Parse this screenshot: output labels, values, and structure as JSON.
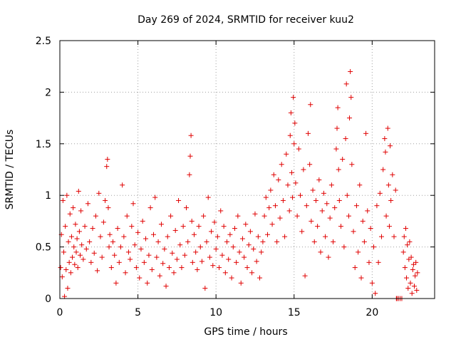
{
  "chart_data": {
    "type": "scatter",
    "title": "Day 269 of 2024, SRMTID for receiver kuu2",
    "xlabel": "GPS time / hours",
    "ylabel": "SRMTID / TECUs",
    "xlim": [
      0,
      24
    ],
    "ylim": [
      0,
      2.5
    ],
    "x_ticks": [
      0,
      5,
      10,
      15,
      20
    ],
    "x_tick_labels": [
      "0",
      "5",
      "10",
      "15",
      "20"
    ],
    "y_ticks": [
      0,
      0.5,
      1,
      1.5,
      2,
      2.5
    ],
    "y_tick_labels": [
      "0",
      "0.5",
      "1",
      "1.5",
      "2",
      "2.5"
    ],
    "grid": true,
    "marker": "+",
    "color": "#e00000",
    "series": [
      {
        "name": "SRMTID",
        "points": [
          [
            0.05,
            0.3
          ],
          [
            0.1,
            0.62
          ],
          [
            0.15,
            0.21
          ],
          [
            0.2,
            0.95
          ],
          [
            0.25,
            0.45
          ],
          [
            0.3,
            0.02
          ],
          [
            0.35,
            0.7
          ],
          [
            0.4,
            0.28
          ],
          [
            0.45,
            1.0
          ],
          [
            0.5,
            0.1
          ],
          [
            0.55,
            0.55
          ],
          [
            0.6,
            0.35
          ],
          [
            0.65,
            0.82
          ],
          [
            0.7,
            0.25
          ],
          [
            0.75,
            0.6
          ],
          [
            0.8,
            0.4
          ],
          [
            0.85,
            0.88
          ],
          [
            0.9,
            0.5
          ],
          [
            0.95,
            0.33
          ],
          [
            1.0,
            0.72
          ],
          [
            1.05,
            0.45
          ],
          [
            1.1,
            0.58
          ],
          [
            1.15,
            0.3
          ],
          [
            1.2,
            1.04
          ],
          [
            1.25,
            0.65
          ],
          [
            1.3,
            0.42
          ],
          [
            1.35,
            0.85
          ],
          [
            1.4,
            0.52
          ],
          [
            1.5,
            0.38
          ],
          [
            1.6,
            0.7
          ],
          [
            1.7,
            0.48
          ],
          [
            1.8,
            0.92
          ],
          [
            1.9,
            0.55
          ],
          [
            2.0,
            0.35
          ],
          [
            2.1,
            0.68
          ],
          [
            2.2,
            0.44
          ],
          [
            2.3,
            0.8
          ],
          [
            2.4,
            0.27
          ],
          [
            2.5,
            1.02
          ],
          [
            2.6,
            0.6
          ],
          [
            2.7,
            0.4
          ],
          [
            2.8,
            0.74
          ],
          [
            2.9,
            0.95
          ],
          [
            3.0,
            1.28
          ],
          [
            3.05,
            1.35
          ],
          [
            3.1,
            0.88
          ],
          [
            3.15,
            0.5
          ],
          [
            3.2,
            0.62
          ],
          [
            3.3,
            0.3
          ],
          [
            3.4,
            0.55
          ],
          [
            3.5,
            0.42
          ],
          [
            3.6,
            0.15
          ],
          [
            3.7,
            0.68
          ],
          [
            3.8,
            0.35
          ],
          [
            3.9,
            0.5
          ],
          [
            4.0,
            1.1
          ],
          [
            4.1,
            0.6
          ],
          [
            4.2,
            0.25
          ],
          [
            4.3,
            0.8
          ],
          [
            4.4,
            0.45
          ],
          [
            4.5,
            0.38
          ],
          [
            4.6,
            0.7
          ],
          [
            4.7,
            0.92
          ],
          [
            4.8,
            0.52
          ],
          [
            4.9,
            0.3
          ],
          [
            5.0,
            0.64
          ],
          [
            5.1,
            0.2
          ],
          [
            5.2,
            0.48
          ],
          [
            5.3,
            0.75
          ],
          [
            5.4,
            0.35
          ],
          [
            5.5,
            0.58
          ],
          [
            5.6,
            0.15
          ],
          [
            5.7,
            0.42
          ],
          [
            5.8,
            0.88
          ],
          [
            5.9,
            0.28
          ],
          [
            6.0,
            0.62
          ],
          [
            6.1,
            0.98
          ],
          [
            6.2,
            0.4
          ],
          [
            6.3,
            0.55
          ],
          [
            6.4,
            0.22
          ],
          [
            6.5,
            0.72
          ],
          [
            6.6,
            0.34
          ],
          [
            6.7,
            0.48
          ],
          [
            6.8,
            0.12
          ],
          [
            6.9,
            0.6
          ],
          [
            7.0,
            0.3
          ],
          [
            7.1,
            0.8
          ],
          [
            7.2,
            0.44
          ],
          [
            7.3,
            0.25
          ],
          [
            7.4,
            0.66
          ],
          [
            7.5,
            0.38
          ],
          [
            7.6,
            0.95
          ],
          [
            7.7,
            0.52
          ],
          [
            7.8,
            0.3
          ],
          [
            7.9,
            0.7
          ],
          [
            8.0,
            0.42
          ],
          [
            8.1,
            0.88
          ],
          [
            8.2,
            0.55
          ],
          [
            8.3,
            1.2
          ],
          [
            8.35,
            1.38
          ],
          [
            8.4,
            1.58
          ],
          [
            8.45,
            0.75
          ],
          [
            8.5,
            0.35
          ],
          [
            8.6,
            0.62
          ],
          [
            8.7,
            0.45
          ],
          [
            8.8,
            0.28
          ],
          [
            8.9,
            0.7
          ],
          [
            9.0,
            0.5
          ],
          [
            9.1,
            0.36
          ],
          [
            9.2,
            0.8
          ],
          [
            9.3,
            0.1
          ],
          [
            9.4,
            0.55
          ],
          [
            9.5,
            0.98
          ],
          [
            9.6,
            0.4
          ],
          [
            9.7,
            0.65
          ],
          [
            9.8,
            0.32
          ],
          [
            9.9,
            0.74
          ],
          [
            10.0,
            0.48
          ],
          [
            10.1,
            0.6
          ],
          [
            10.2,
            0.3
          ],
          [
            10.3,
            0.85
          ],
          [
            10.4,
            0.42
          ],
          [
            10.5,
            0.7
          ],
          [
            10.6,
            0.25
          ],
          [
            10.7,
            0.55
          ],
          [
            10.8,
            0.38
          ],
          [
            10.9,
            0.62
          ],
          [
            11.0,
            0.2
          ],
          [
            11.1,
            0.5
          ],
          [
            11.2,
            0.68
          ],
          [
            11.3,
            0.35
          ],
          [
            11.4,
            0.8
          ],
          [
            11.5,
            0.45
          ],
          [
            11.6,
            0.15
          ],
          [
            11.7,
            0.58
          ],
          [
            11.8,
            0.4
          ],
          [
            11.9,
            0.72
          ],
          [
            12.0,
            0.3
          ],
          [
            12.1,
            0.52
          ],
          [
            12.2,
            0.65
          ],
          [
            12.3,
            0.25
          ],
          [
            12.4,
            0.48
          ],
          [
            12.5,
            0.82
          ],
          [
            12.6,
            0.36
          ],
          [
            12.7,
            0.6
          ],
          [
            12.8,
            0.2
          ],
          [
            12.9,
            0.45
          ],
          [
            13.0,
            0.55
          ],
          [
            13.1,
            0.8
          ],
          [
            13.2,
            0.98
          ],
          [
            13.3,
            0.62
          ],
          [
            13.4,
            0.88
          ],
          [
            13.5,
            1.05
          ],
          [
            13.6,
            0.72
          ],
          [
            13.7,
            1.2
          ],
          [
            13.8,
            0.9
          ],
          [
            13.9,
            0.55
          ],
          [
            14.0,
            1.15
          ],
          [
            14.1,
            0.78
          ],
          [
            14.2,
            1.3
          ],
          [
            14.3,
            0.95
          ],
          [
            14.4,
            0.6
          ],
          [
            14.5,
            1.4
          ],
          [
            14.6,
            1.1
          ],
          [
            14.7,
            0.85
          ],
          [
            14.75,
            1.58
          ],
          [
            14.8,
            1.8
          ],
          [
            14.85,
            1.22
          ],
          [
            14.9,
            0.98
          ],
          [
            14.95,
            1.95
          ],
          [
            15.0,
            1.5
          ],
          [
            15.05,
            1.7
          ],
          [
            15.1,
            1.12
          ],
          [
            15.2,
            0.8
          ],
          [
            15.3,
            1.45
          ],
          [
            15.4,
            1.0
          ],
          [
            15.5,
            0.65
          ],
          [
            15.6,
            1.25
          ],
          [
            15.7,
            0.22
          ],
          [
            15.8,
            0.9
          ],
          [
            15.9,
            1.6
          ],
          [
            16.0,
            1.3
          ],
          [
            16.05,
            1.88
          ],
          [
            16.1,
            0.75
          ],
          [
            16.2,
            1.05
          ],
          [
            16.3,
            0.55
          ],
          [
            16.4,
            0.95
          ],
          [
            16.5,
            0.7
          ],
          [
            16.6,
            1.15
          ],
          [
            16.7,
            0.45
          ],
          [
            16.8,
            0.85
          ],
          [
            16.9,
            1.02
          ],
          [
            17.0,
            0.6
          ],
          [
            17.1,
            0.92
          ],
          [
            17.2,
            0.4
          ],
          [
            17.3,
            0.78
          ],
          [
            17.4,
            1.1
          ],
          [
            17.5,
            0.55
          ],
          [
            17.6,
            0.88
          ],
          [
            17.7,
            1.45
          ],
          [
            17.75,
            1.65
          ],
          [
            17.8,
            1.85
          ],
          [
            17.85,
            1.25
          ],
          [
            17.9,
            0.95
          ],
          [
            18.0,
            0.7
          ],
          [
            18.1,
            1.35
          ],
          [
            18.2,
            0.5
          ],
          [
            18.3,
            1.55
          ],
          [
            18.35,
            2.08
          ],
          [
            18.4,
            1.0
          ],
          [
            18.5,
            0.8
          ],
          [
            18.55,
            1.75
          ],
          [
            18.6,
            2.2
          ],
          [
            18.65,
            1.95
          ],
          [
            18.7,
            1.3
          ],
          [
            18.8,
            0.65
          ],
          [
            18.9,
            0.3
          ],
          [
            19.0,
            0.9
          ],
          [
            19.1,
            0.45
          ],
          [
            19.2,
            1.1
          ],
          [
            19.3,
            0.2
          ],
          [
            19.4,
            0.75
          ],
          [
            19.5,
            0.55
          ],
          [
            19.6,
            1.6
          ],
          [
            19.7,
            0.85
          ],
          [
            19.8,
            0.35
          ],
          [
            19.9,
            0.68
          ],
          [
            20.0,
            0.15
          ],
          [
            20.1,
            0.5
          ],
          [
            20.2,
            0.05
          ],
          [
            20.3,
            0.9
          ],
          [
            20.4,
            0.35
          ],
          [
            20.5,
            1.02
          ],
          [
            20.6,
            0.6
          ],
          [
            20.7,
            1.25
          ],
          [
            20.8,
            1.55
          ],
          [
            20.85,
            1.42
          ],
          [
            20.9,
            0.8
          ],
          [
            21.0,
            1.65
          ],
          [
            21.05,
            1.1
          ],
          [
            21.1,
            0.7
          ],
          [
            21.15,
            1.48
          ],
          [
            21.2,
            0.95
          ],
          [
            21.3,
            1.2
          ],
          [
            21.4,
            0.6
          ],
          [
            21.5,
            1.05
          ],
          [
            21.55,
            0.0
          ],
          [
            21.6,
            0.0
          ],
          [
            21.7,
            0.0
          ],
          [
            21.8,
            0.0
          ],
          [
            21.9,
            0.0
          ],
          [
            22.0,
            0.45
          ],
          [
            22.05,
            0.6
          ],
          [
            22.1,
            0.3
          ],
          [
            22.15,
            0.68
          ],
          [
            22.2,
            0.2
          ],
          [
            22.25,
            0.52
          ],
          [
            22.3,
            0.1
          ],
          [
            22.35,
            0.38
          ],
          [
            22.4,
            0.55
          ],
          [
            22.45,
            0.15
          ],
          [
            22.5,
            0.4
          ],
          [
            22.55,
            0.05
          ],
          [
            22.6,
            0.28
          ],
          [
            22.65,
            0.33
          ],
          [
            22.7,
            0.12
          ],
          [
            22.75,
            0.22
          ],
          [
            22.8,
            0.35
          ],
          [
            22.85,
            0.08
          ],
          [
            22.9,
            0.25
          ]
        ]
      }
    ]
  }
}
